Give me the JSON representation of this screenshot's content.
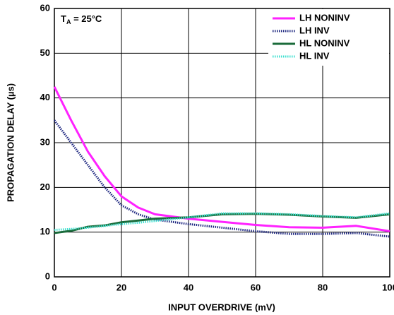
{
  "chart_data": {
    "type": "line",
    "annotation": {
      "main": "T",
      "sub": "A",
      "rest": " = 25°C"
    },
    "xlabel": "INPUT OVERDRIVE (mV)",
    "ylabel": "PROPAGATION DELAY (µs)",
    "x": [
      0,
      5,
      10,
      15,
      20,
      25,
      30,
      40,
      50,
      60,
      70,
      80,
      90,
      100
    ],
    "series": [
      {
        "name": "LH NONINV",
        "color": "#ff22ff",
        "style": "solid",
        "values": [
          42.5,
          35,
          28,
          22.5,
          18,
          15.5,
          14,
          13,
          12.3,
          11.6,
          11.1,
          11,
          11.4,
          10.2
        ]
      },
      {
        "name": "LH INV",
        "color": "#1a237e",
        "style": "dotted",
        "values": [
          35,
          30,
          25,
          20,
          16,
          14,
          12.8,
          11.8,
          11,
          10.2,
          9.6,
          9.6,
          9.8,
          9
        ]
      },
      {
        "name": "HL NONINV",
        "color": "#1a6b3a",
        "style": "solid",
        "values": [
          9.8,
          10.3,
          11.2,
          11.5,
          12.2,
          12.6,
          13,
          13.3,
          14,
          14.1,
          13.9,
          13.5,
          13.2,
          14
        ]
      },
      {
        "name": "HL INV",
        "color": "#40e0d0",
        "style": "dotted",
        "values": [
          10.5,
          10.7,
          11,
          11.4,
          11.8,
          12.1,
          12.5,
          13.3,
          14.2,
          14.2,
          14,
          13.6,
          13.3,
          14.2
        ]
      }
    ],
    "xlim": [
      0,
      100
    ],
    "xticks": [
      0,
      20,
      40,
      60,
      80,
      100
    ],
    "ylim": [
      0,
      60
    ],
    "yticks": [
      0,
      10,
      20,
      30,
      40,
      50,
      60
    ],
    "grid": true,
    "legend": "upper right"
  }
}
